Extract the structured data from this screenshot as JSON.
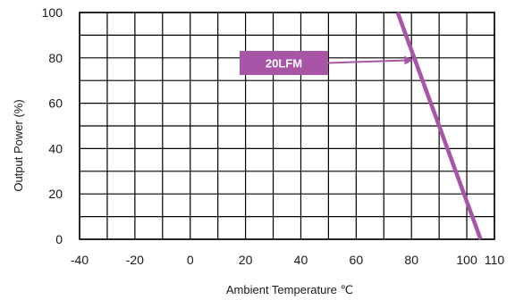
{
  "chart_data": {
    "type": "line",
    "title": "",
    "xlabel": "Ambient Temperature ℃",
    "ylabel": "Output Power (%)",
    "xlim": [
      -40,
      110
    ],
    "ylim": [
      0,
      100
    ],
    "x_ticks": [
      -40,
      -20,
      0,
      20,
      40,
      60,
      80,
      100,
      110
    ],
    "x_tick_labels": [
      "-40",
      "-20",
      "0",
      "20",
      "40",
      "60",
      "80",
      "100",
      "110"
    ],
    "y_ticks": [
      0,
      20,
      40,
      60,
      80,
      100
    ],
    "y_tick_labels": [
      "0",
      "20",
      "40",
      "60",
      "80",
      "100"
    ],
    "grid": true,
    "series": [
      {
        "name": "20LFM",
        "color": "#a855a7",
        "points": [
          {
            "x": 75,
            "y": 100
          },
          {
            "x": 81,
            "y": 80
          },
          {
            "x": 105,
            "y": 0
          }
        ]
      }
    ],
    "annotation": {
      "text": "20LFM",
      "arrow_to": {
        "x": 80,
        "y": 79
      },
      "color": "#a855a7"
    }
  }
}
